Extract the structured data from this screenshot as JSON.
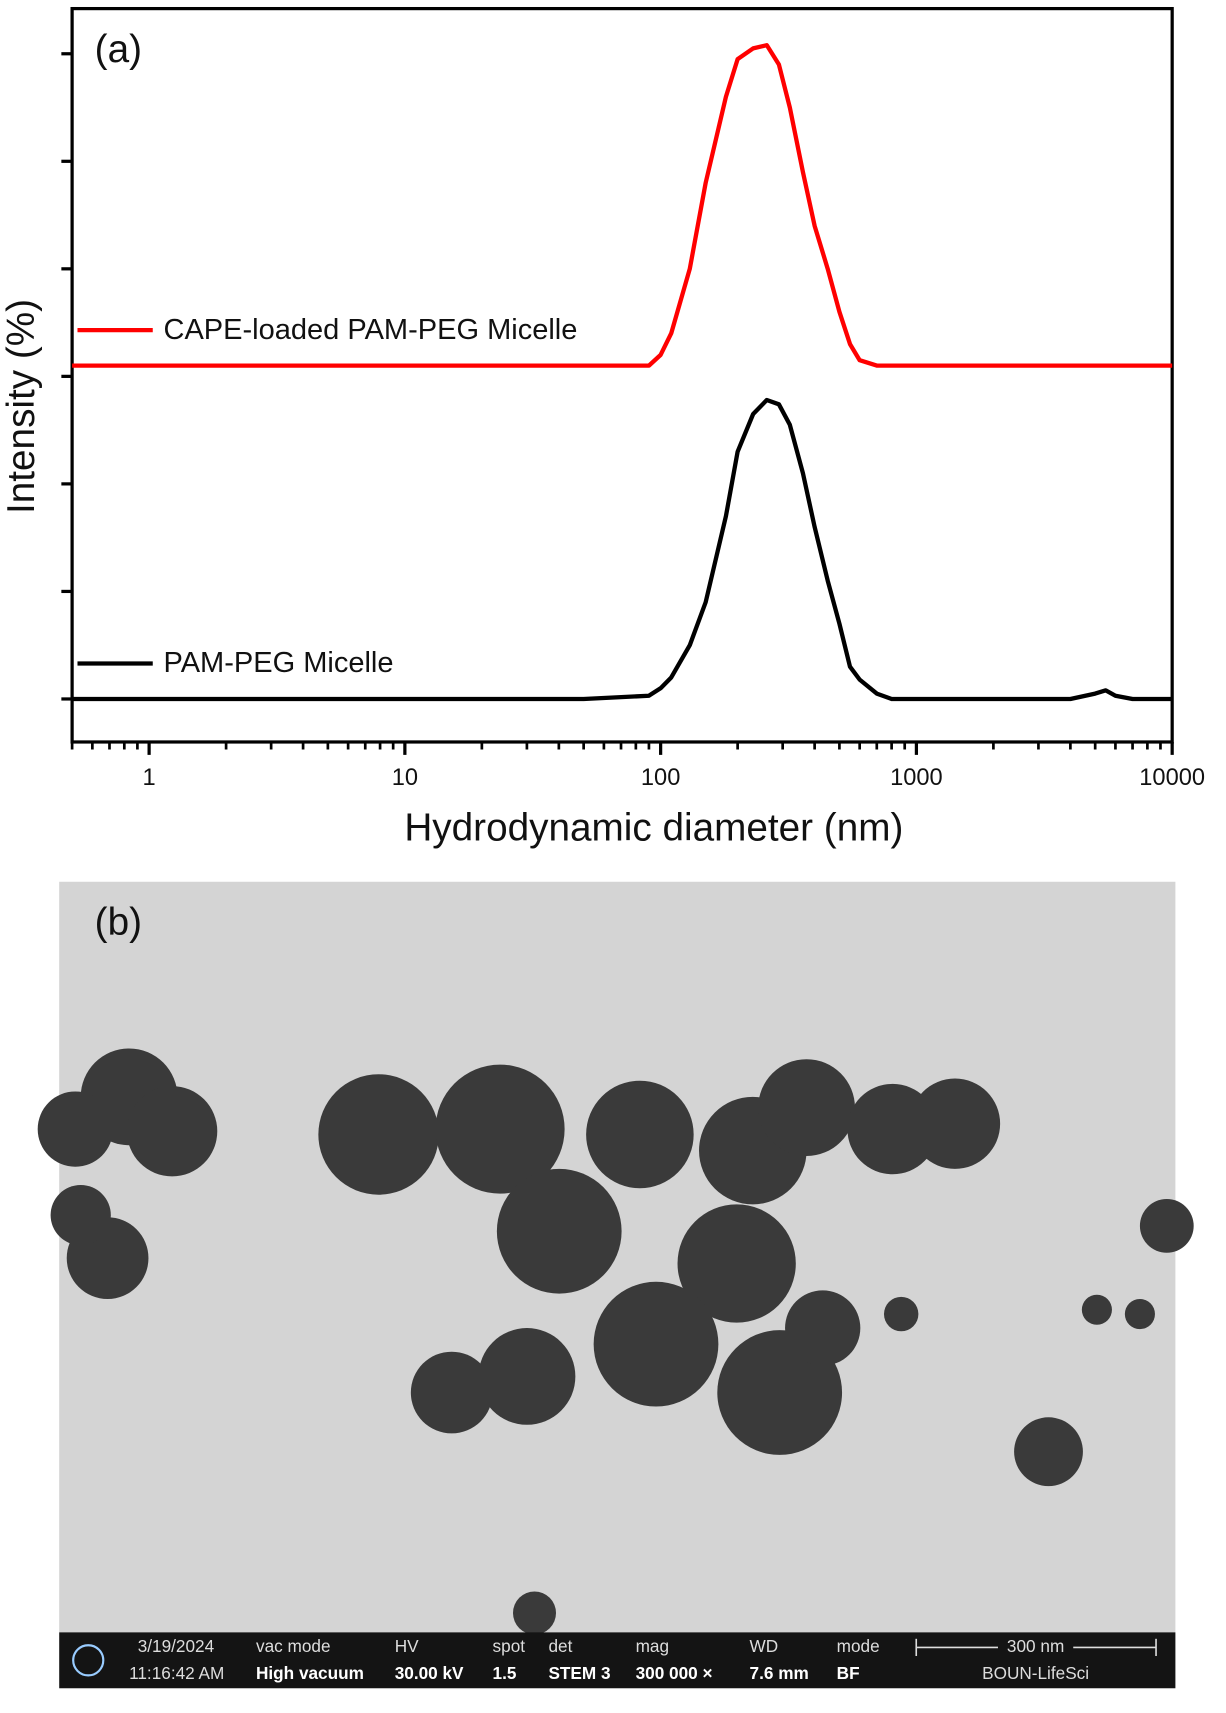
{
  "chart_data": {
    "type": "line",
    "panel_label": "(a)",
    "x_label": "Hydrodynamic diameter (nm)",
    "y_label": "Intensity (%)",
    "xscale": "log",
    "xlim": [
      0.5,
      10000
    ],
    "xticks": [
      1,
      10,
      100,
      1000,
      10000
    ],
    "ylim": [
      -4,
      64.2
    ],
    "yticks": [
      0,
      10,
      20,
      30,
      40,
      50,
      60
    ],
    "x": [
      0.5,
      50,
      90,
      100,
      110,
      130,
      150,
      180,
      200,
      230,
      260,
      290,
      320,
      360,
      400,
      450,
      500,
      550,
      600,
      700,
      800,
      1000,
      4000,
      5000,
      5500,
      6000,
      7000,
      10000
    ],
    "series": [
      {
        "name": "CAPE-loaded PAM-PEG Micelle",
        "color": "#ff0000",
        "values": [
          31,
          31,
          31,
          32,
          34,
          40,
          48,
          56,
          59.5,
          60.5,
          60.8,
          59,
          55,
          49,
          44,
          40,
          36,
          33,
          31.5,
          31,
          31,
          31,
          31,
          31,
          31,
          31,
          31,
          31
        ]
      },
      {
        "name": "PAM-PEG Micelle",
        "color": "#000000",
        "values": [
          0,
          0,
          0.3,
          1,
          2,
          5,
          9,
          17,
          23,
          26.5,
          27.8,
          27.4,
          25.5,
          21,
          16,
          11,
          7,
          3,
          1.8,
          0.5,
          0,
          0,
          0,
          0.5,
          0.8,
          0.3,
          0,
          0
        ]
      }
    ]
  },
  "image_panel": {
    "panel_label": "(b)",
    "info_bar": {
      "date": "3/19/2024",
      "time": "11:16:42 AM",
      "vac_label": "vac mode",
      "vac": "High vacuum",
      "hv_label": "HV",
      "hv": "30.00 kV",
      "spot_label": "spot",
      "spot": "1.5",
      "det_label": "det",
      "det": "STEM 3",
      "mag_label": "mag",
      "mag": "300 000 ×",
      "wd_label": "WD",
      "wd": "7.6 mm",
      "mode_label": "mode",
      "mode": "BF",
      "scale": "300 nm",
      "lab": "BOUN-LifeSci"
    }
  }
}
